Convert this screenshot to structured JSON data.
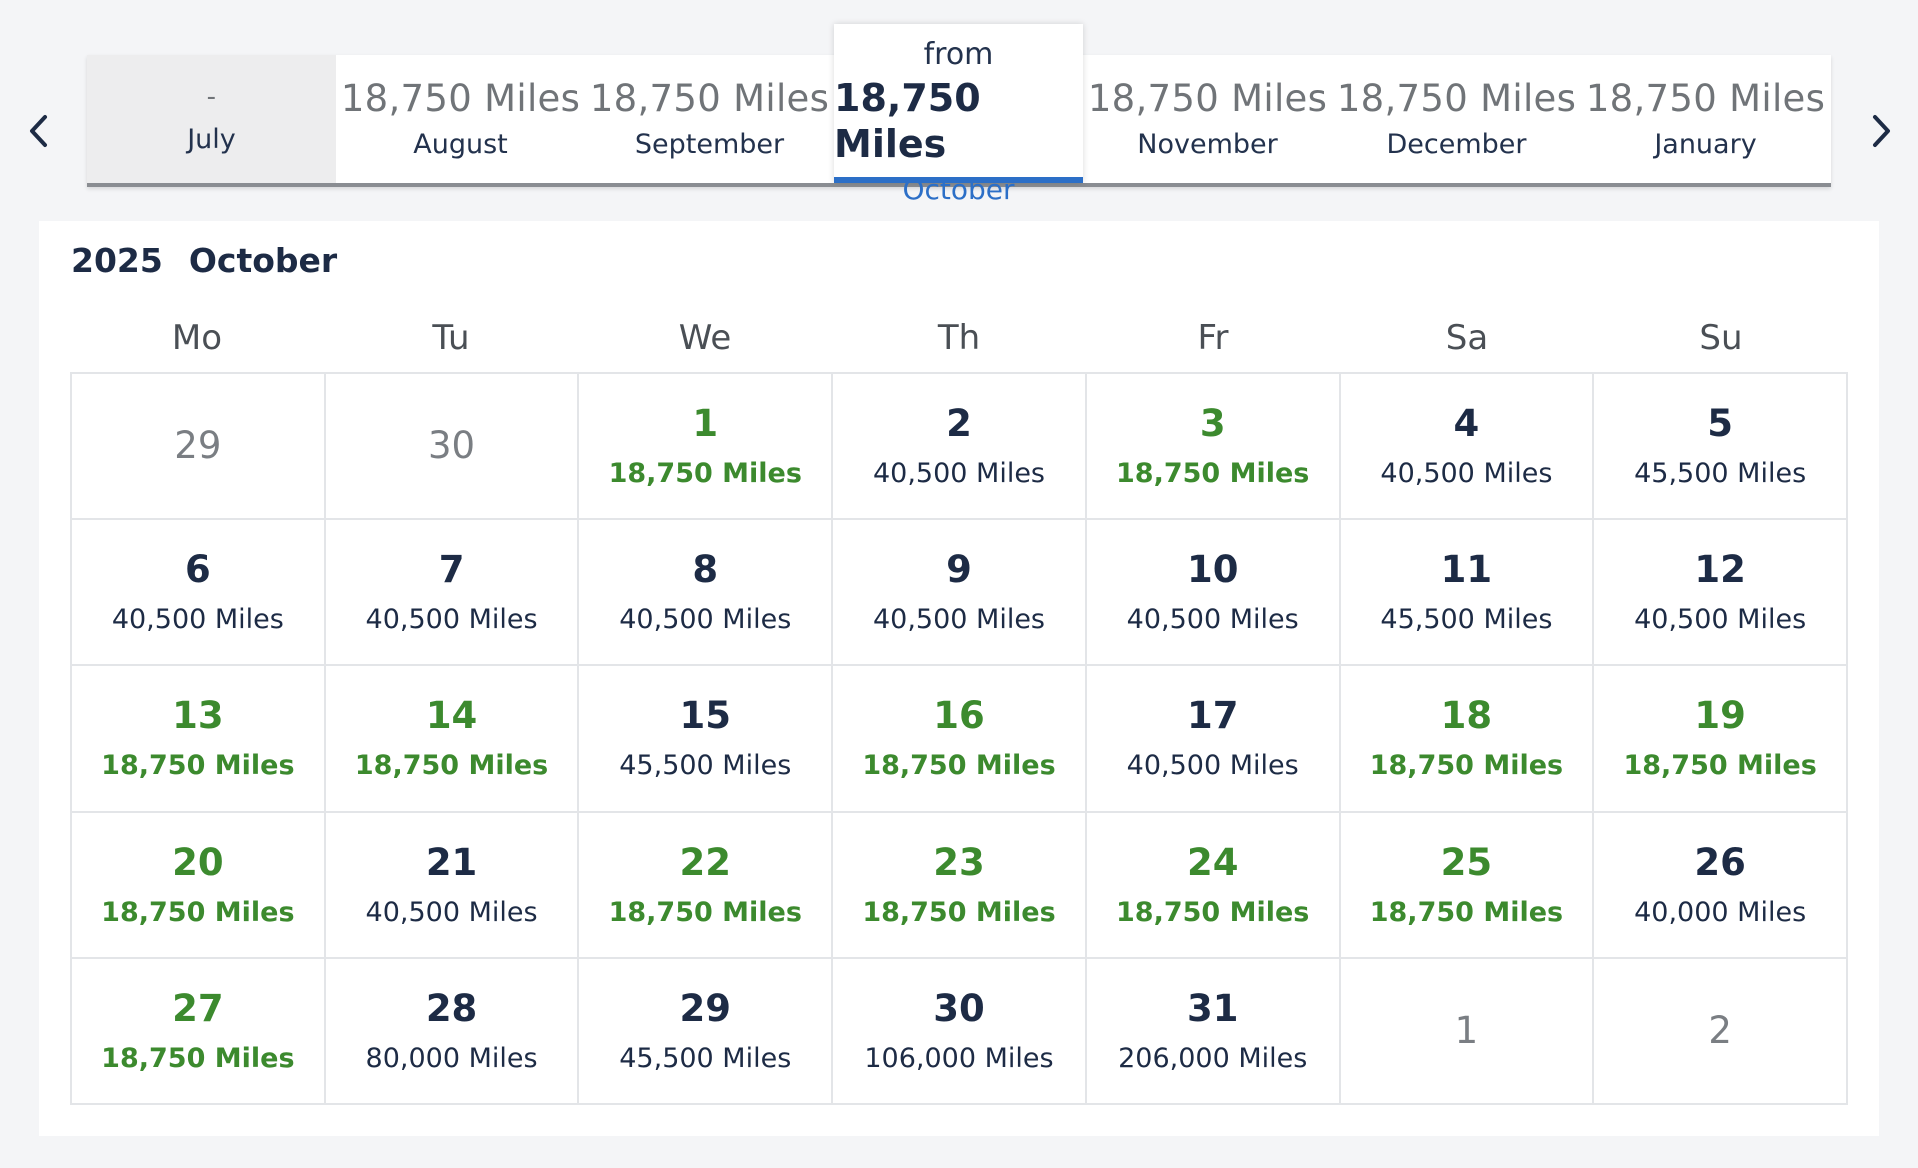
{
  "months": [
    {
      "price": "-",
      "label": "July",
      "disabled": true
    },
    {
      "price": "18,750 Miles",
      "label": "August"
    },
    {
      "price": "18,750 Miles",
      "label": "September"
    },
    {
      "price": "18,750 Miles",
      "label": "October",
      "from": "from",
      "active": true
    },
    {
      "price": "18,750 Miles",
      "label": "November"
    },
    {
      "price": "18,750 Miles",
      "label": "December"
    },
    {
      "price": "18,750 Miles",
      "label": "January"
    }
  ],
  "calendar": {
    "year": "2025",
    "month": "October",
    "weekdays": [
      "Mo",
      "Tu",
      "We",
      "Th",
      "Fr",
      "Sa",
      "Su"
    ],
    "cells": [
      {
        "day": "29",
        "outside": true
      },
      {
        "day": "30",
        "outside": true
      },
      {
        "day": "1",
        "miles": "18,750 Miles",
        "low": true
      },
      {
        "day": "2",
        "miles": "40,500 Miles"
      },
      {
        "day": "3",
        "miles": "18,750 Miles",
        "low": true
      },
      {
        "day": "4",
        "miles": "40,500 Miles"
      },
      {
        "day": "5",
        "miles": "45,500 Miles"
      },
      {
        "day": "6",
        "miles": "40,500 Miles"
      },
      {
        "day": "7",
        "miles": "40,500 Miles"
      },
      {
        "day": "8",
        "miles": "40,500 Miles"
      },
      {
        "day": "9",
        "miles": "40,500 Miles"
      },
      {
        "day": "10",
        "miles": "40,500 Miles"
      },
      {
        "day": "11",
        "miles": "45,500 Miles"
      },
      {
        "day": "12",
        "miles": "40,500 Miles"
      },
      {
        "day": "13",
        "miles": "18,750 Miles",
        "low": true
      },
      {
        "day": "14",
        "miles": "18,750 Miles",
        "low": true
      },
      {
        "day": "15",
        "miles": "45,500 Miles"
      },
      {
        "day": "16",
        "miles": "18,750 Miles",
        "low": true
      },
      {
        "day": "17",
        "miles": "40,500 Miles"
      },
      {
        "day": "18",
        "miles": "18,750 Miles",
        "low": true
      },
      {
        "day": "19",
        "miles": "18,750 Miles",
        "low": true
      },
      {
        "day": "20",
        "miles": "18,750 Miles",
        "low": true
      },
      {
        "day": "21",
        "miles": "40,500 Miles"
      },
      {
        "day": "22",
        "miles": "18,750 Miles",
        "low": true
      },
      {
        "day": "23",
        "miles": "18,750 Miles",
        "low": true
      },
      {
        "day": "24",
        "miles": "18,750 Miles",
        "low": true
      },
      {
        "day": "25",
        "miles": "18,750 Miles",
        "low": true
      },
      {
        "day": "26",
        "miles": "40,000 Miles"
      },
      {
        "day": "27",
        "miles": "18,750 Miles",
        "low": true
      },
      {
        "day": "28",
        "miles": "80,000 Miles"
      },
      {
        "day": "29",
        "miles": "45,500 Miles"
      },
      {
        "day": "30",
        "miles": "106,000 Miles"
      },
      {
        "day": "31",
        "miles": "206,000 Miles"
      },
      {
        "day": "1",
        "outside": true
      },
      {
        "day": "2",
        "outside": true
      }
    ]
  },
  "colors": {
    "accent_blue": "#2c6fc7",
    "low_price_green": "#3c8a2e",
    "text_dark": "#1d2b45"
  },
  "icons": {
    "prev": "chevron-left-icon",
    "next": "chevron-right-icon"
  }
}
